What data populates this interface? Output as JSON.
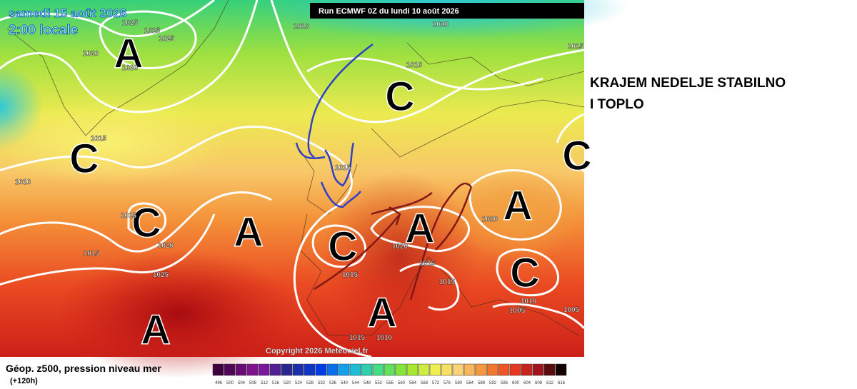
{
  "map": {
    "date": "samedi 15 août 2026",
    "time": "2:00 locale",
    "run": "Run ECMWF 0Z du lundi 10 août 2026",
    "copyright": "Copyright 2026 Meteociel.fr",
    "systems": [
      "A",
      "C",
      "C",
      "C",
      "A",
      "C",
      "A",
      "A",
      "C",
      "A",
      "A",
      "C"
    ],
    "isobar_labels": [
      "1025",
      "1025",
      "1025",
      "1020",
      "1020",
      "1010",
      "1010",
      "1010",
      "1015",
      "1015",
      "1010",
      "1015",
      "1015",
      "1020",
      "1015",
      "1025",
      "1020",
      "1020",
      "1015",
      "1015",
      "1015",
      "1010",
      "1005",
      "1005",
      "1015",
      "1010"
    ]
  },
  "annotation": [
    "KRAJEM NEDELJE STABILNO",
    "I TOPLO"
  ],
  "legend": {
    "title": "Géop. z500, pression niveau mer",
    "lead": "(+120h)",
    "scale": [
      496,
      500,
      504,
      508,
      512,
      516,
      520,
      524,
      528,
      532,
      536,
      540,
      544,
      548,
      552,
      556,
      560,
      564,
      568,
      572,
      576,
      580,
      584,
      588,
      592,
      596,
      600,
      604,
      608,
      612,
      616
    ]
  }
}
